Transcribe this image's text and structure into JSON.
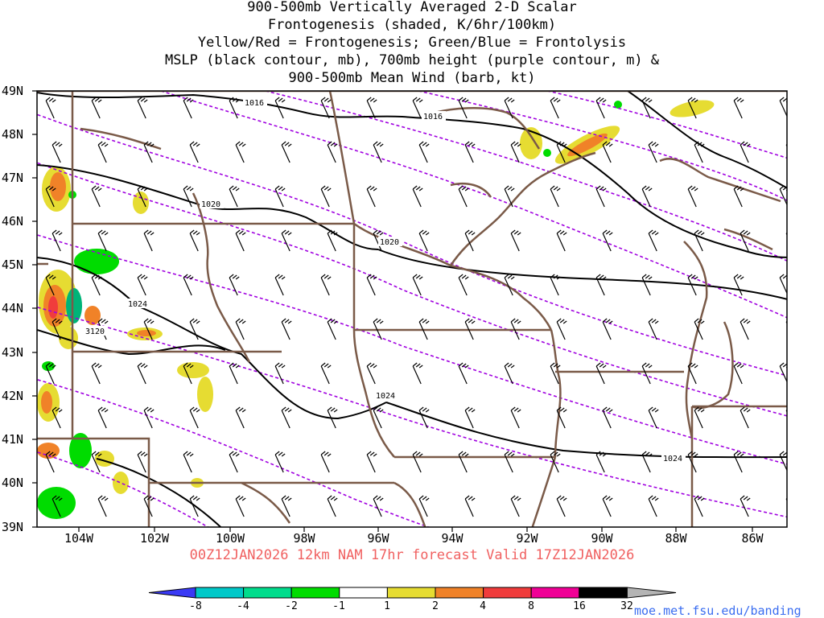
{
  "title": {
    "lines": [
      "900-500mb Vertically Averaged 2-D Scalar",
      "Frontogenesis (shaded, K/6hr/100km)",
      "Yellow/Red = Frontogenesis;  Green/Blue = Frontolysis",
      "MSLP (black contour, mb), 700mb height (purple contour, m) &",
      "900-500mb Mean Wind (barb, kt)"
    ]
  },
  "map": {
    "lat_labels": [
      "49N",
      "48N",
      "47N",
      "46N",
      "45N",
      "44N",
      "43N",
      "42N",
      "41N",
      "40N",
      "39N"
    ],
    "lon_labels": [
      "104W",
      "102W",
      "100W",
      "98W",
      "96W",
      "94W",
      "92W",
      "90W",
      "88W",
      "86W"
    ],
    "mslp_contour_labels": [
      "1016",
      "1016",
      "1020",
      "1020",
      "1024",
      "1024",
      "1024"
    ],
    "height_contour_labels": [
      "3120"
    ],
    "colors": {
      "mslp": "#000000",
      "height": "#a000e0",
      "borders": "#7a5a48",
      "frontogenesis_weak": "#e6dc32",
      "frontogenesis_mid": "#f08228",
      "frontogenesis_strong": "#f03c3c",
      "frontolysis_weak": "#00dc00",
      "frontolysis_mid": "#00b478"
    }
  },
  "valid_text": "00Z12JAN2026 12km NAM 17hr forecast Valid 17Z12JAN2026",
  "colorbar": {
    "labels": [
      "-8",
      "-4",
      "-2",
      "-1",
      "1",
      "2",
      "4",
      "8",
      "16",
      "32"
    ],
    "colors": [
      "#3a3af5",
      "#00c8c8",
      "#00dc8c",
      "#00dc00",
      "#ffffff",
      "#e6dc32",
      "#f08228",
      "#f03c3c",
      "#f00096",
      "#000000"
    ]
  },
  "credit": "moe.met.fsu.edu/banding"
}
